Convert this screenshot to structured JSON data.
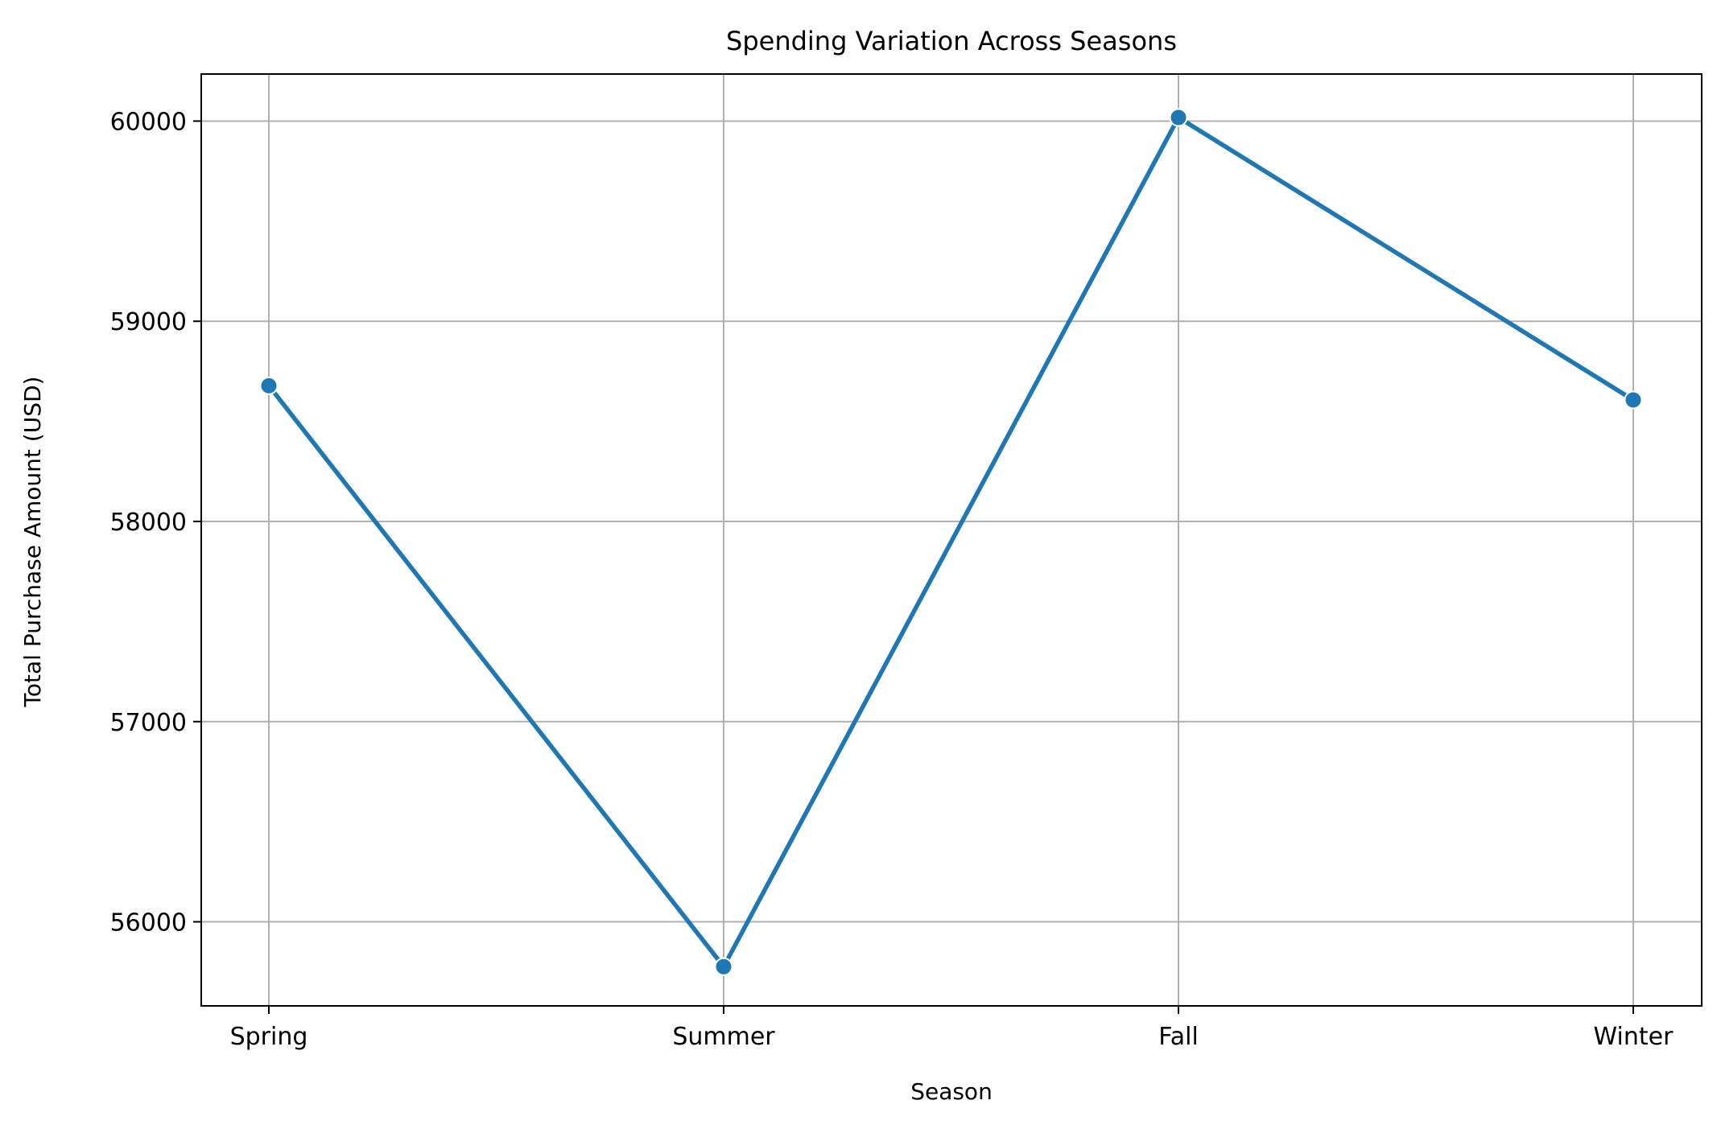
{
  "chart_data": {
    "type": "line",
    "title": "Spending Variation Across Seasons",
    "xlabel": "Season",
    "ylabel": "Total Purchase Amount (USD)",
    "categories": [
      "Spring",
      "Summer",
      "Fall",
      "Winter"
    ],
    "series": [
      {
        "values": [
          58678,
          55776,
          60018,
          58607
        ],
        "color": "#1f77b4",
        "marker": "circle"
      }
    ],
    "ylim": [
      55580,
      60235
    ],
    "yticks": [
      56000,
      57000,
      58000,
      59000,
      60000
    ],
    "ytick_labels": [
      "56000",
      "57000",
      "58000",
      "59000",
      "60000"
    ],
    "grid": true,
    "legend": false
  }
}
